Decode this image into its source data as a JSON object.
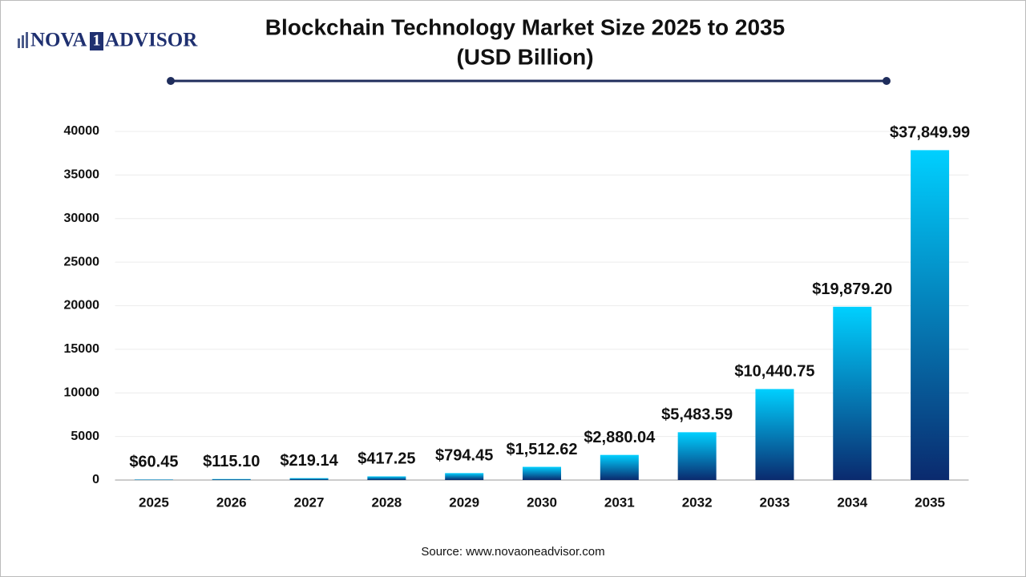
{
  "logo": {
    "left": "NOVA",
    "mark": "1",
    "right": "ADVISOR"
  },
  "source": "Source: www.novaoneadvisor.com",
  "chart_data": {
    "type": "bar",
    "title": "Blockchain Technology Market Size 2025 to 2035",
    "subtitle": "(USD Billion)",
    "categories": [
      "2025",
      "2026",
      "2027",
      "2028",
      "2029",
      "2030",
      "2031",
      "2032",
      "2033",
      "2034",
      "2035"
    ],
    "values": [
      60.45,
      115.1,
      219.14,
      417.25,
      794.45,
      1512.62,
      2880.04,
      5483.59,
      10440.75,
      19879.2,
      37849.99
    ],
    "value_labels": [
      "$60.45",
      "$115.10",
      "$219.14",
      "$417.25",
      "$794.45",
      "$1,512.62",
      "$2,880.04",
      "$5,483.59",
      "$10,440.75",
      "$19,879.20",
      "$37,849.99"
    ],
    "gradient": [
      "#00d0ff",
      "#0a2a6e"
    ],
    "ylim": [
      0,
      40000
    ],
    "yticks": [
      0,
      5000,
      10000,
      15000,
      20000,
      25000,
      30000,
      35000,
      40000
    ],
    "grid": true
  }
}
